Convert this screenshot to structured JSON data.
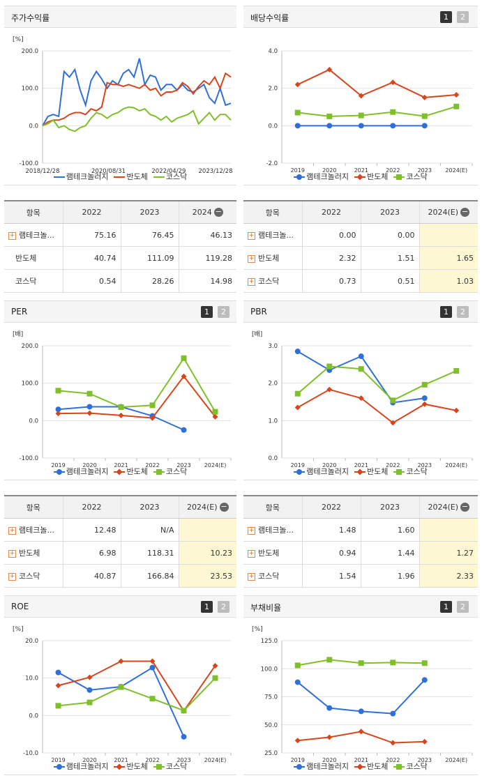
{
  "colors": {
    "s1": "#2f6fd8",
    "s2": "#d8441c",
    "s3": "#7fbf2a"
  },
  "page_buttons": {
    "p1": "1",
    "p2": "2"
  },
  "chart_data": [
    {
      "id": "stock",
      "type": "line",
      "title": "주가수익률",
      "unit": "[%]",
      "ylim": [
        -100,
        200
      ],
      "yticks": [
        "200.0",
        "100.0",
        "0.0",
        "-100.0"
      ],
      "x_ticks": [
        "2018/12/28",
        "2020/08/31",
        "2022/04/29",
        "2023/12/28"
      ],
      "series": [
        {
          "name": "램테크놀러지",
          "values": [
            0,
            25,
            30,
            25,
            145,
            130,
            150,
            95,
            55,
            120,
            145,
            125,
            100,
            120,
            110,
            140,
            150,
            130,
            180,
            110,
            135,
            130,
            95,
            110,
            110,
            95,
            110,
            95,
            90,
            100,
            110,
            75,
            60,
            100,
            55,
            60
          ]
        },
        {
          "name": "반도체",
          "values": [
            0,
            10,
            15,
            15,
            20,
            30,
            35,
            35,
            30,
            45,
            40,
            50,
            115,
            110,
            110,
            105,
            110,
            105,
            100,
            110,
            95,
            100,
            80,
            90,
            90,
            95,
            115,
            105,
            85,
            105,
            120,
            110,
            130,
            100,
            140,
            130
          ]
        },
        {
          "name": "코스닥",
          "values": [
            0,
            5,
            15,
            -5,
            0,
            -10,
            -15,
            -5,
            0,
            20,
            35,
            30,
            20,
            30,
            35,
            45,
            50,
            48,
            40,
            45,
            30,
            25,
            15,
            25,
            10,
            20,
            25,
            30,
            40,
            5,
            20,
            35,
            15,
            30,
            30,
            15
          ]
        }
      ]
    },
    {
      "id": "dividend",
      "type": "line",
      "title": "배당수익률",
      "unit": "",
      "ylim": [
        -2,
        4
      ],
      "yticks": [
        "4.0",
        "2.0",
        "0.0",
        "-2.0"
      ],
      "categories": [
        "2019",
        "2020",
        "2021",
        "2022",
        "2023",
        "2024(E)"
      ],
      "series": [
        {
          "name": "램테크놀러지",
          "values": [
            0,
            0,
            0,
            0,
            0,
            null
          ]
        },
        {
          "name": "반도체",
          "values": [
            2.2,
            3.0,
            1.6,
            2.32,
            1.51,
            1.65
          ]
        },
        {
          "name": "코스닥",
          "values": [
            0.7,
            0.5,
            0.55,
            0.73,
            0.51,
            1.03
          ]
        }
      ]
    },
    {
      "id": "per",
      "type": "line",
      "title": "PER",
      "unit": "[배]",
      "ylim": [
        -100,
        200
      ],
      "yticks": [
        "200.0",
        "100.0",
        "0.0",
        "-100.0"
      ],
      "categories": [
        "2019",
        "2020",
        "2021",
        "2022",
        "2023",
        "2024(E)"
      ],
      "series": [
        {
          "name": "램테크놀러지",
          "values": [
            30,
            37,
            37,
            12.48,
            -25,
            null
          ]
        },
        {
          "name": "반도체",
          "values": [
            19,
            20,
            14,
            6.98,
            118.31,
            10.23
          ]
        },
        {
          "name": "코스닥",
          "values": [
            80,
            72,
            36,
            40.87,
            166.84,
            23.53
          ]
        }
      ]
    },
    {
      "id": "pbr",
      "type": "line",
      "title": "PBR",
      "unit": "[배]",
      "ylim": [
        0,
        3
      ],
      "yticks": [
        "3.0",
        "2.0",
        "1.0",
        "0.0"
      ],
      "categories": [
        "2019",
        "2020",
        "2021",
        "2022",
        "2023",
        "2024(E)"
      ],
      "series": [
        {
          "name": "램테크놀러지",
          "values": [
            2.85,
            2.35,
            2.72,
            1.48,
            1.6,
            null
          ]
        },
        {
          "name": "반도체",
          "values": [
            1.35,
            1.83,
            1.6,
            0.94,
            1.44,
            1.27
          ]
        },
        {
          "name": "코스닥",
          "values": [
            1.72,
            2.45,
            2.38,
            1.54,
            1.96,
            2.33
          ]
        }
      ]
    },
    {
      "id": "roe",
      "type": "line",
      "title": "ROE",
      "unit": "[%]",
      "ylim": [
        -10,
        20
      ],
      "yticks": [
        "20.0",
        "10.0",
        "0.0",
        "-10.0"
      ],
      "categories": [
        "2019",
        "2020",
        "2021",
        "2022",
        "2023",
        "2024(E)"
      ],
      "series": [
        {
          "name": "램테크놀러지",
          "values": [
            11.5,
            6.8,
            7.7,
            12.8,
            -5.7,
            null
          ]
        },
        {
          "name": "반도체",
          "values": [
            8,
            10.2,
            14.5,
            14.5,
            1.2,
            13.3
          ]
        },
        {
          "name": "코스닥",
          "values": [
            2.6,
            3.5,
            7.6,
            4.5,
            1.3,
            10
          ]
        }
      ]
    },
    {
      "id": "debt",
      "type": "line",
      "title": "부채비율",
      "unit": "[%]",
      "ylim": [
        25,
        125
      ],
      "yticks": [
        "125.0",
        "100.0",
        "75.0",
        "50.0",
        "25.0"
      ],
      "categories": [
        "2019",
        "2020",
        "2021",
        "2022",
        "2023",
        "2024(E)"
      ],
      "series": [
        {
          "name": "램테크놀러지",
          "values": [
            88,
            65,
            62,
            60,
            90,
            null
          ]
        },
        {
          "name": "반도체",
          "values": [
            36,
            39,
            44,
            34,
            35,
            null
          ]
        },
        {
          "name": "코스닥",
          "values": [
            103,
            108,
            105,
            105.5,
            105,
            null
          ]
        }
      ]
    }
  ],
  "tables": [
    {
      "id": "t-stock",
      "header": [
        "항목",
        "2022",
        "2023",
        "2024"
      ],
      "rows": [
        {
          "name": "램테크놀...",
          "plus": true,
          "values": [
            "75.16",
            "76.45",
            "46.13"
          ]
        },
        {
          "name": "반도체",
          "plus": false,
          "values": [
            "40.74",
            "111.09",
            "119.28"
          ]
        },
        {
          "name": "코스닥",
          "plus": false,
          "values": [
            "0.54",
            "28.26",
            "14.98"
          ]
        }
      ]
    },
    {
      "id": "t-dividend",
      "header": [
        "항목",
        "2022",
        "2023",
        "2024(E)"
      ],
      "rows": [
        {
          "name": "램테크놀...",
          "plus": true,
          "values": [
            "0.00",
            "0.00",
            ""
          ]
        },
        {
          "name": "반도체",
          "plus": true,
          "values": [
            "2.32",
            "1.51",
            "1.65"
          ]
        },
        {
          "name": "코스닥",
          "plus": true,
          "values": [
            "0.73",
            "0.51",
            "1.03"
          ]
        }
      ]
    },
    {
      "id": "t-per",
      "header": [
        "항목",
        "2022",
        "2023",
        "2024(E)"
      ],
      "rows": [
        {
          "name": "램테크놀...",
          "plus": true,
          "values": [
            "12.48",
            "N/A",
            ""
          ]
        },
        {
          "name": "반도체",
          "plus": true,
          "values": [
            "6.98",
            "118.31",
            "10.23"
          ]
        },
        {
          "name": "코스닥",
          "plus": true,
          "values": [
            "40.87",
            "166.84",
            "23.53"
          ]
        }
      ]
    },
    {
      "id": "t-pbr",
      "header": [
        "항목",
        "2022",
        "2023",
        "2024(E)"
      ],
      "rows": [
        {
          "name": "램테크놀...",
          "plus": true,
          "values": [
            "1.48",
            "1.60",
            ""
          ]
        },
        {
          "name": "반도체",
          "plus": true,
          "values": [
            "0.94",
            "1.44",
            "1.27"
          ]
        },
        {
          "name": "코스닥",
          "plus": true,
          "values": [
            "1.54",
            "1.96",
            "2.33"
          ]
        }
      ]
    }
  ]
}
